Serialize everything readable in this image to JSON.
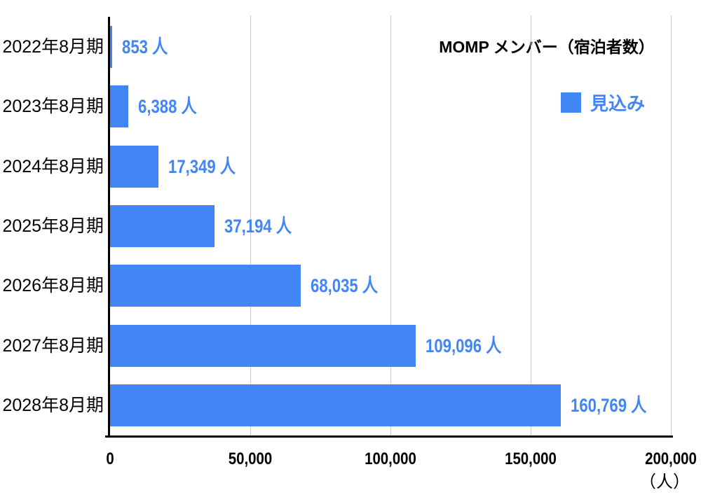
{
  "chart_data": {
    "type": "bar",
    "orientation": "horizontal",
    "title": "MOMP メンバー（宿泊者数）",
    "categories": [
      "2022年8月期",
      "2023年8月期",
      "2024年8月期",
      "2025年8月期",
      "2026年8月期",
      "2027年8月期",
      "2028年8月期"
    ],
    "series": [
      {
        "name": "見込み",
        "values": [
          853,
          6388,
          17349,
          37194,
          68035,
          109096,
          160769
        ],
        "color": "#4285F4"
      }
    ],
    "value_labels": [
      "853 人",
      "6,388 人",
      "17,349 人",
      "37,194 人",
      "68,035 人",
      "109,096 人",
      "160,769 人"
    ],
    "xlim": [
      0,
      200000
    ],
    "x_ticks": [
      "0",
      "50,000",
      "100,000",
      "150,000",
      "200,000"
    ],
    "x_tick_values": [
      0,
      50000,
      100000,
      150000,
      200000
    ],
    "xlabel": "（人）",
    "grid": "vertical-gridlines-only",
    "legend_position": "top-right"
  },
  "colors": {
    "bar": "#4285F4",
    "value_label": "#4285F4",
    "legend_label": "#4285F4",
    "axis": "#000000",
    "gridline": "#cccccc",
    "background": "#ffffff",
    "text": "#000000"
  }
}
